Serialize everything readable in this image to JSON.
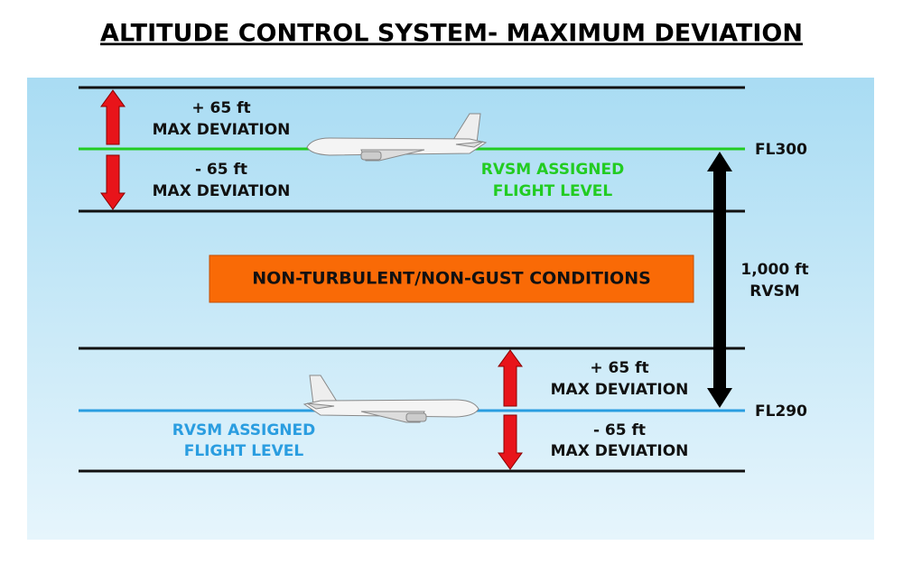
{
  "header": {
    "title": "ALTITUDE CONTROL SYSTEM- MAXIMUM DEVIATION"
  },
  "upper_level": {
    "flight_level": "FL300",
    "plus": [
      "+ 65 ft",
      "MAX DEVIATION"
    ],
    "minus": [
      "- 65 ft",
      "MAX DEVIATION"
    ],
    "label": [
      "RVSM ASSIGNED",
      "FLIGHT LEVEL"
    ]
  },
  "middle": {
    "conditions": "NON-TURBULENT/NON-GUST CONDITIONS",
    "separation": [
      "1,000 ft",
      "RVSM"
    ]
  },
  "lower_level": {
    "flight_level": "FL290",
    "plus": [
      "+ 65 ft",
      "MAX DEVIATION"
    ],
    "minus": [
      "- 65 ft",
      "MAX DEVIATION"
    ],
    "label": [
      "RVSM ASSIGNED",
      "FLIGHT LEVEL"
    ]
  }
}
